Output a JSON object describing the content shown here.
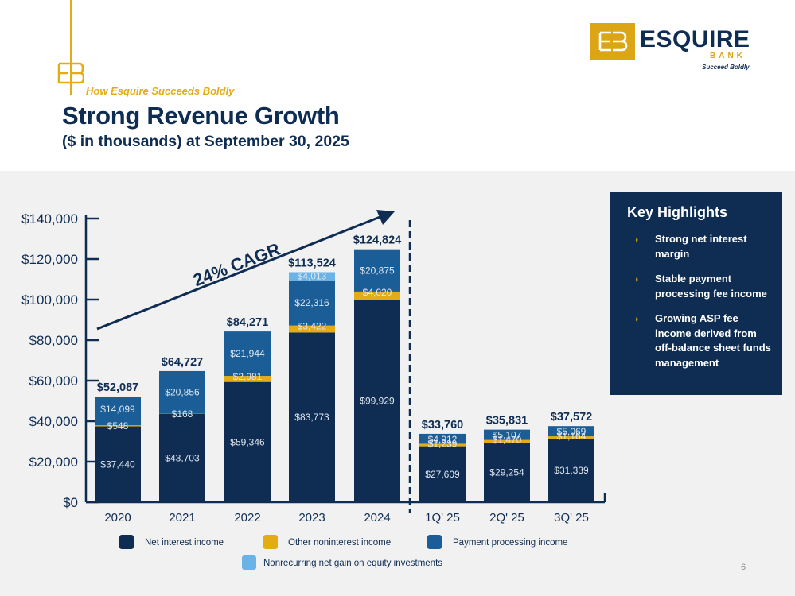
{
  "header": {
    "subtitle_prefix": "How Esquire",
    "subtitle_emphasis": "Succeeds Boldly",
    "title": "Strong Revenue Growth",
    "subhead": "($ in thousands) at September 30, 2025"
  },
  "logo": {
    "name": "ESQUIRE",
    "bank": "BANK",
    "tagline": "Succeed Boldly"
  },
  "highlights": {
    "title": "Key Highlights",
    "items": [
      "Strong net interest margin",
      "Stable payment processing fee income",
      "Growing ASP fee income derived from off-balance sheet funds management"
    ]
  },
  "page_number": "6",
  "colors": {
    "navy": "#0f2d52",
    "gold": "#e4ac14",
    "payment": "#1b5d96",
    "light_blue": "#69b3e7"
  },
  "chart_data": {
    "type": "bar",
    "stacked": true,
    "title": "Strong Revenue Growth",
    "ylim": [
      0,
      140000
    ],
    "yticks": [
      0,
      20000,
      40000,
      60000,
      80000,
      100000,
      120000,
      140000
    ],
    "ytick_labels": [
      "$0",
      "$20,000",
      "$40,000",
      "$60,000",
      "$80,000",
      "$100,000",
      "$120,000",
      "$140,000"
    ],
    "categories": [
      "2020",
      "2021",
      "2022",
      "2023",
      "2024",
      "1Q' 25",
      "2Q' 25",
      "3Q' 25"
    ],
    "series": [
      {
        "name": "Net interest income",
        "color": "#0f2d52",
        "values": [
          37440,
          43703,
          59346,
          83773,
          99929,
          27609,
          29254,
          31339
        ],
        "labels": [
          "$37,440",
          "$43,703",
          "$59,346",
          "$83,773",
          "$99,929",
          "$27,609",
          "$29,254",
          "$31,339"
        ]
      },
      {
        "name": "Other noninterest income",
        "color": "#e4ac14",
        "values": [
          548,
          168,
          2981,
          3422,
          4020,
          1239,
          1470,
          1164
        ],
        "labels": [
          "$548",
          "$168",
          "$2,981",
          "$3,422",
          "$4,020",
          "$1,239",
          "$1,470",
          "$1,164"
        ]
      },
      {
        "name": "Payment processing income",
        "color": "#1b5d96",
        "values": [
          14099,
          20856,
          21944,
          22316,
          20875,
          4912,
          5107,
          5069
        ],
        "labels": [
          "$14,099",
          "$20,856",
          "$21,944",
          "$22,316",
          "$20,875",
          "$4,912",
          "$5,107",
          "$5,069"
        ]
      },
      {
        "name": "Nonrecurring net gain on equity investments",
        "color": "#69b3e7",
        "values": [
          0,
          0,
          0,
          4013,
          0,
          0,
          0,
          0
        ],
        "labels": [
          "",
          "",
          "",
          "$4,013",
          "",
          "",
          "",
          ""
        ]
      }
    ],
    "totals": [
      "$52,087",
      "$64,727",
      "$84,271",
      "$113,524",
      "$124,824",
      "$33,760",
      "$35,831",
      "$37,572"
    ],
    "annotation": "24% CAGR",
    "legend": {
      "placement": "bottom",
      "items": [
        "Net interest income",
        "Other noninterest income",
        "Payment processing income",
        "Nonrecurring net gain on equity investments"
      ]
    }
  }
}
